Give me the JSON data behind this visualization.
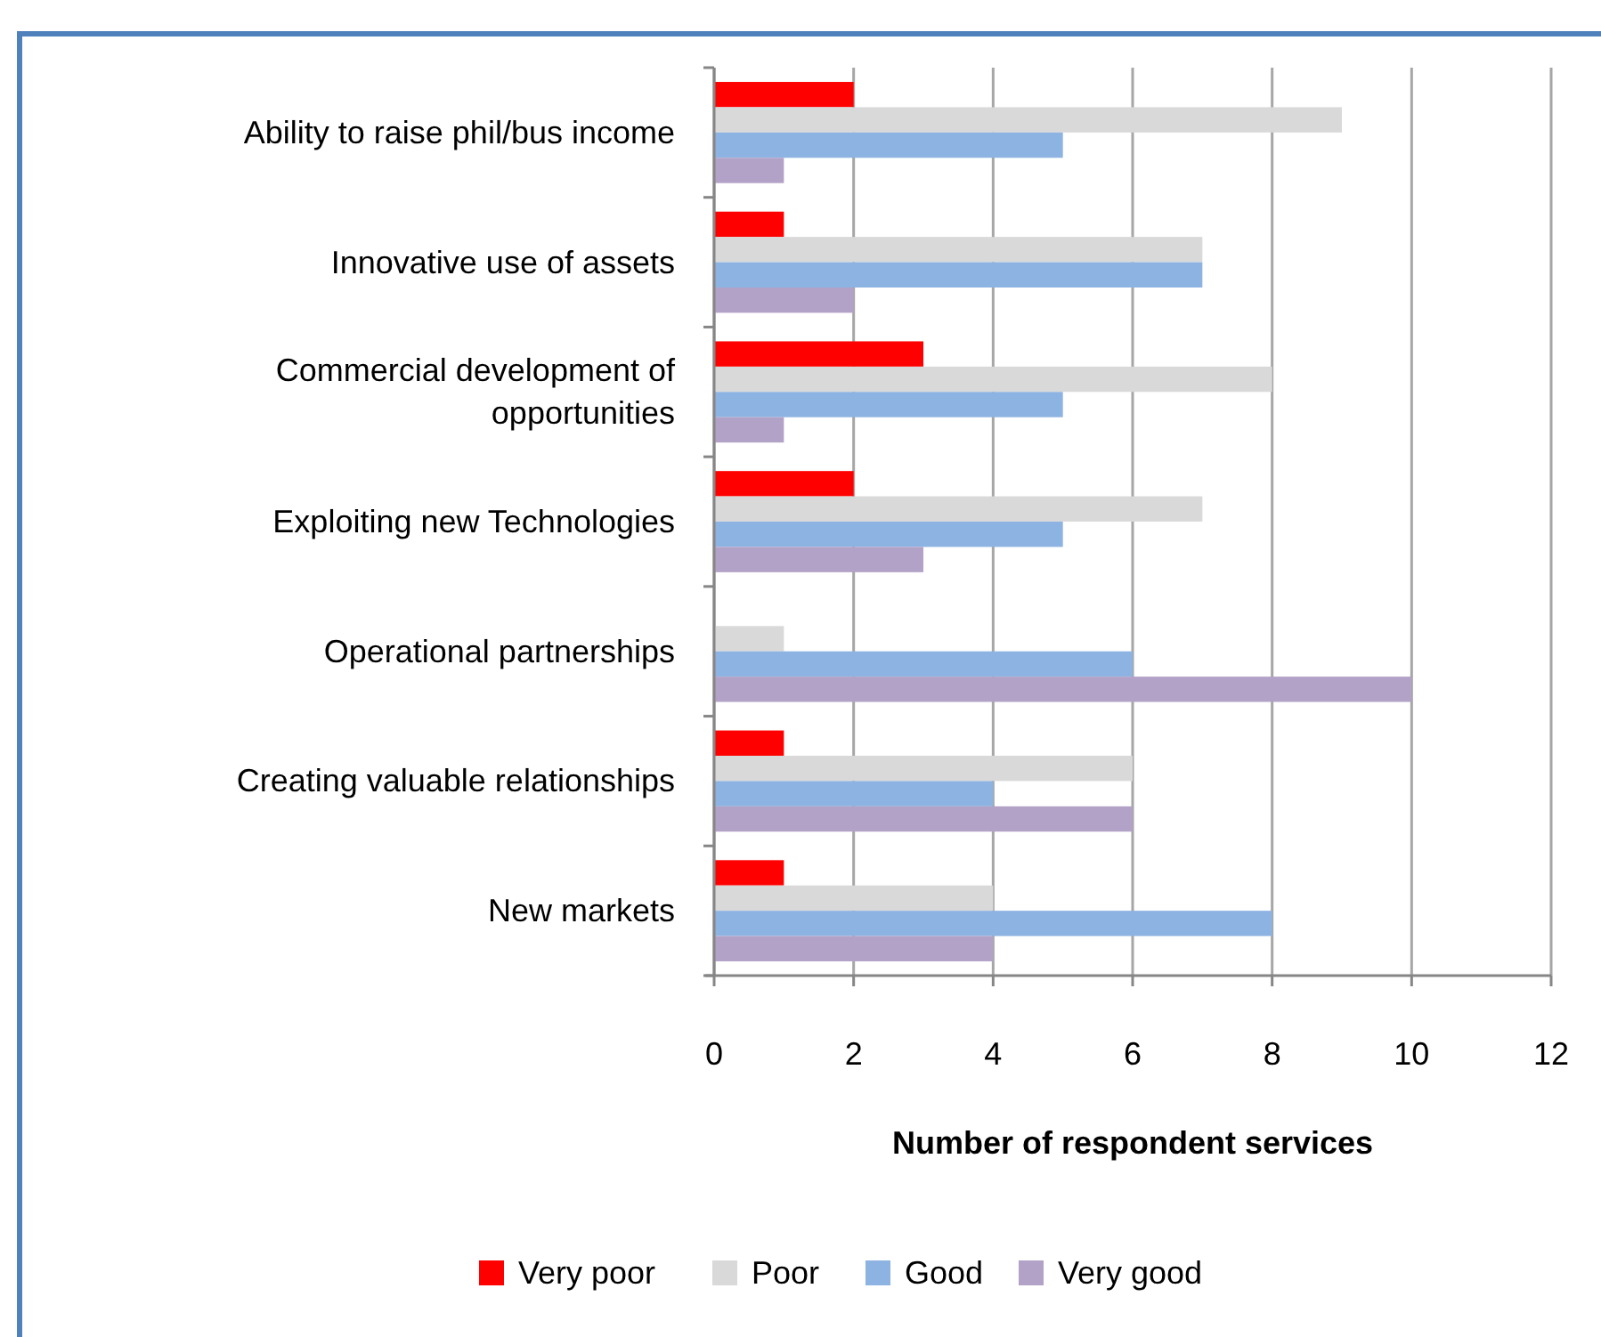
{
  "chart_data": {
    "type": "bar",
    "orientation": "horizontal",
    "xlabel": "Number of respondent services",
    "categories": [
      "Ability to raise phil/bus income",
      "Innovative use of assets",
      "Commercial development of opportunities",
      "Exploiting new Technologies",
      "Operational partnerships",
      "Creating valuable relationships",
      "New markets"
    ],
    "series": [
      {
        "name": "Very poor",
        "color": "#ff0000",
        "values": [
          2,
          1,
          3,
          2,
          0,
          1,
          1
        ]
      },
      {
        "name": "Poor",
        "color": "#d9d9d9",
        "values": [
          9,
          7,
          8,
          7,
          1,
          6,
          4
        ]
      },
      {
        "name": "Good",
        "color": "#8db3e2",
        "values": [
          5,
          7,
          5,
          5,
          6,
          4,
          8
        ]
      },
      {
        "name": "Very good",
        "color": "#b3a2c7",
        "values": [
          1,
          2,
          1,
          3,
          10,
          6,
          4
        ]
      }
    ],
    "xlim": [
      0,
      12
    ],
    "xticks": [
      0,
      2,
      4,
      6,
      8,
      10,
      12
    ],
    "grid": "x",
    "legend": "bottom"
  }
}
